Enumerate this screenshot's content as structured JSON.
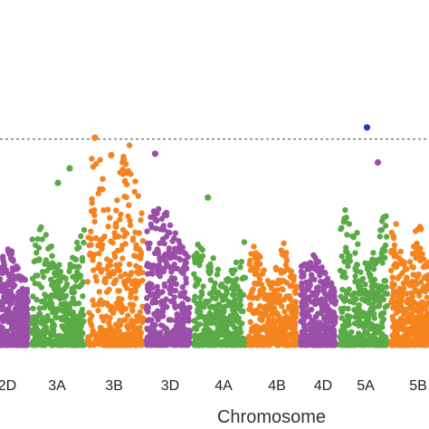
{
  "chart_data": {
    "type": "scatter",
    "title": "",
    "xlabel": "Chromosome",
    "ylabel": "",
    "ylim": [
      0,
      10
    ],
    "threshold": 7.1,
    "grid": false,
    "legend": "none",
    "palette": {
      "purple": "#9b4fa8",
      "green": "#5aaa46",
      "orange": "#f5841f",
      "blue": "#1f35d6",
      "threshold": "#555555"
    },
    "chromosomes": [
      {
        "label": "2D",
        "color": "purple",
        "peak": 3.3,
        "floor": 0.05
      },
      {
        "label": "3A",
        "color": "green",
        "peak": 4.1,
        "floor": 0.05
      },
      {
        "label": "3B",
        "color": "orange",
        "peak": 7.2,
        "floor": 0.05
      },
      {
        "label": "3D",
        "color": "purple",
        "peak": 4.8,
        "floor": 0.05
      },
      {
        "label": "4A",
        "color": "green",
        "peak": 3.6,
        "floor": 0.05
      },
      {
        "label": "4B",
        "color": "orange",
        "peak": 3.5,
        "floor": 0.05
      },
      {
        "label": "4D",
        "color": "purple",
        "peak": 3.1,
        "floor": 0.05
      },
      {
        "label": "5A",
        "color": "green",
        "peak": 4.7,
        "floor": 0.05
      },
      {
        "label": "5B",
        "color": "orange",
        "peak": 4.2,
        "floor": 0.05
      }
    ],
    "highlight_points": [
      {
        "chrom": "3B",
        "y": 7.15,
        "color": "orange"
      },
      {
        "chrom": "3B",
        "y": 6.4,
        "color": "orange"
      },
      {
        "chrom": "3B",
        "y": 6.55,
        "color": "orange"
      },
      {
        "chrom": "3D",
        "y": 6.6,
        "color": "purple"
      },
      {
        "chrom": "3A",
        "y": 6.1,
        "color": "green"
      },
      {
        "chrom": "3A",
        "y": 5.6,
        "color": "green"
      },
      {
        "chrom": "4A",
        "y": 5.1,
        "color": "green"
      },
      {
        "chrom": "5A",
        "y": 6.3,
        "color": "purple"
      },
      {
        "chrom": "5A",
        "y": 7.5,
        "color": "blue"
      }
    ]
  }
}
